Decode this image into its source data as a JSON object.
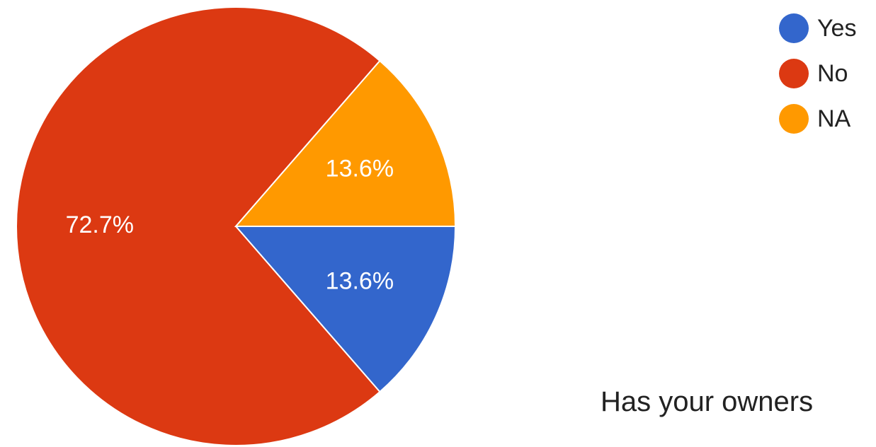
{
  "chart_data": {
    "type": "pie",
    "title": "",
    "slices": [
      {
        "label": "Yes",
        "value": 13.6,
        "display": "13.6%",
        "color": "#3366cc"
      },
      {
        "label": "No",
        "value": 72.7,
        "display": "72.7%",
        "color": "#dc3912"
      },
      {
        "label": "NA",
        "value": 13.6,
        "display": "13.6%",
        "color": "#ff9900"
      }
    ],
    "legend_position": "top-right",
    "start": "3 o'clock",
    "direction": "clockwise"
  },
  "footer_text": "Has your owners"
}
